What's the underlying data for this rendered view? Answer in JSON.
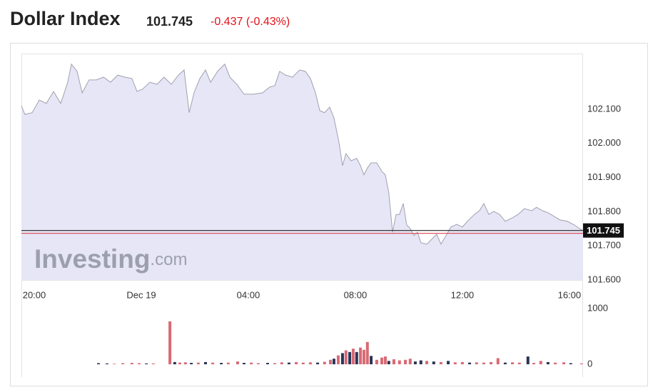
{
  "header": {
    "title": "Dollar Index",
    "change": "-0.437 (-0.43%)",
    "watermark": [
      "Investing",
      ".com"
    ]
  },
  "chart_data": [
    {
      "type": "area",
      "color": "#e6e6f6",
      "line_color": "#a0a0b0",
      "last_price": 101.745,
      "x": [
        -4.48,
        -4.35,
        -4.08,
        -3.81,
        -3.55,
        -3.28,
        -3.01,
        -2.75,
        -2.61,
        -2.4,
        -2.21,
        -1.95,
        -1.68,
        -1.41,
        -1.15,
        -0.88,
        -0.61,
        -0.35,
        -0.16,
        0.05,
        0.32,
        0.59,
        0.85,
        1.12,
        1.39,
        1.6,
        1.79,
        1.97,
        2.19,
        2.4,
        2.59,
        2.85,
        3.12,
        3.31,
        3.57,
        3.84,
        4.19,
        4.53,
        4.8,
        4.99,
        5.17,
        5.39,
        5.65,
        5.92,
        6.13,
        6.32,
        6.51,
        6.67,
        6.85,
        7.04,
        7.2,
        7.39,
        7.52,
        7.65,
        7.84,
        8.05,
        8.19,
        8.32,
        8.45,
        8.59,
        8.8,
        8.99,
        9.12,
        9.25,
        9.39,
        9.52,
        9.65,
        9.79,
        9.92,
        10.05,
        10.19,
        10.32,
        10.45,
        10.67,
        10.85,
        11.04,
        11.2,
        11.39,
        11.57,
        11.79,
        12.0,
        12.19,
        12.45,
        12.64,
        12.8,
        12.99,
        13.17,
        13.39,
        13.6,
        13.87,
        14.08,
        14.32,
        14.59,
        14.77,
        14.99,
        15.2,
        15.39,
        15.65,
        15.92,
        16.19,
        16.37,
        16.51
      ],
      "values": [
        102.11,
        102.085,
        102.09,
        102.127,
        102.117,
        102.152,
        102.117,
        102.179,
        102.232,
        102.211,
        102.148,
        102.186,
        102.186,
        102.194,
        102.179,
        102.2,
        102.194,
        102.19,
        102.152,
        102.159,
        102.179,
        102.173,
        102.194,
        102.173,
        102.2,
        102.215,
        102.09,
        102.148,
        102.19,
        102.215,
        102.179,
        102.211,
        102.232,
        102.194,
        102.173,
        102.144,
        102.144,
        102.148,
        102.165,
        102.169,
        102.211,
        102.2,
        102.194,
        102.215,
        102.211,
        102.19,
        102.148,
        102.096,
        102.09,
        102.106,
        102.075,
        102.002,
        101.935,
        101.97,
        101.949,
        101.956,
        101.935,
        101.908,
        101.928,
        101.943,
        101.943,
        101.918,
        101.908,
        101.855,
        101.74,
        101.792,
        101.792,
        101.824,
        101.761,
        101.751,
        101.73,
        101.74,
        101.709,
        101.705,
        101.719,
        101.734,
        101.705,
        101.73,
        101.755,
        101.763,
        101.755,
        101.772,
        101.792,
        101.803,
        101.824,
        101.792,
        101.801,
        101.792,
        101.772,
        101.782,
        101.792,
        101.809,
        101.803,
        101.813,
        101.803,
        101.797,
        101.788,
        101.776,
        101.772,
        101.761,
        101.751,
        101.745
      ],
      "xlim": [
        -4.48,
        16.51
      ],
      "xticks": [
        {
          "value": -4,
          "label": "20:00"
        },
        {
          "value": 0,
          "label": "Dec 19"
        },
        {
          "value": 4,
          "label": "04:00"
        },
        {
          "value": 8,
          "label": "08:00"
        },
        {
          "value": 12,
          "label": "12:00"
        },
        {
          "value": 16,
          "label": "16:00"
        }
      ],
      "ylim": [
        101.6,
        102.263
      ],
      "yticks": [
        {
          "value": 101.6,
          "label": "101.600"
        },
        {
          "value": 101.7,
          "label": "101.700"
        },
        {
          "value": 101.8,
          "label": "101.800"
        },
        {
          "value": 101.9,
          "label": "101.900"
        },
        {
          "value": 102.0,
          "label": "102.000"
        },
        {
          "value": 102.1,
          "label": "102.100"
        }
      ]
    },
    {
      "type": "bar",
      "x": [
        -1.6,
        -1.28,
        -1.01,
        -0.69,
        -0.35,
        -0.08,
        0.19,
        0.45,
        1.07,
        1.25,
        1.44,
        1.65,
        1.87,
        2.13,
        2.4,
        2.67,
        2.99,
        3.25,
        3.6,
        3.84,
        4.11,
        4.37,
        4.72,
        4.99,
        5.25,
        5.52,
        5.79,
        6.05,
        6.32,
        6.59,
        6.85,
        7.07,
        7.2,
        7.36,
        7.52,
        7.65,
        7.79,
        7.92,
        8.05,
        8.19,
        8.32,
        8.45,
        8.59,
        8.8,
        8.99,
        9.12,
        9.25,
        9.44,
        9.65,
        9.87,
        10.05,
        10.24,
        10.45,
        10.67,
        10.93,
        11.2,
        11.47,
        11.73,
        12.0,
        12.27,
        12.53,
        12.8,
        13.07,
        13.33,
        13.6,
        13.87,
        14.13,
        14.45,
        14.67,
        14.93,
        15.2,
        15.47,
        15.79,
        16.05,
        16.45
      ],
      "values": [
        20,
        15,
        10,
        20,
        25,
        20,
        15,
        15,
        770,
        40,
        30,
        35,
        25,
        30,
        40,
        30,
        25,
        30,
        50,
        25,
        30,
        20,
        25,
        20,
        35,
        30,
        40,
        30,
        35,
        30,
        45,
        80,
        100,
        160,
        200,
        250,
        220,
        280,
        220,
        300,
        260,
        400,
        150,
        80,
        120,
        140,
        60,
        90,
        70,
        80,
        100,
        50,
        70,
        60,
        50,
        40,
        60,
        35,
        40,
        30,
        35,
        30,
        40,
        110,
        30,
        35,
        30,
        140,
        25,
        60,
        40,
        30,
        35,
        20,
        15
      ],
      "colors": [
        "#2a3556",
        "#2a3556",
        "#d86a74",
        "#d86a74",
        "#d86a74",
        "#d86a74",
        "#2a3556",
        "#d86a74",
        "#d86a74",
        "#2a3556",
        "#d86a74",
        "#d86a74",
        "#2a3556",
        "#d86a74",
        "#2a3556",
        "#d86a74",
        "#2a3556",
        "#d86a74",
        "#d86a74",
        "#2a3556",
        "#d86a74",
        "#d86a74",
        "#2a3556",
        "#d86a74",
        "#d86a74",
        "#2a3556",
        "#d86a74",
        "#d86a74",
        "#d86a74",
        "#2a3556",
        "#d86a74",
        "#d86a74",
        "#2a3556",
        "#d86a74",
        "#2a3556",
        "#d86a74",
        "#2a3556",
        "#d86a74",
        "#2a3556",
        "#d86a74",
        "#d86a74",
        "#d86a74",
        "#2a3556",
        "#d86a74",
        "#d86a74",
        "#d86a74",
        "#2a3556",
        "#d86a74",
        "#d86a74",
        "#d86a74",
        "#d86a74",
        "#2a3556",
        "#2a3556",
        "#d86a74",
        "#2a3556",
        "#d86a74",
        "#2a3556",
        "#d86a74",
        "#d86a74",
        "#2a3556",
        "#d86a74",
        "#d86a74",
        "#d86a74",
        "#d86a74",
        "#2a3556",
        "#d86a74",
        "#d86a74",
        "#2a3556",
        "#d86a74",
        "#d86a74",
        "#2a3556",
        "#d86a74",
        "#d86a74",
        "#2a3556",
        "#d86a74"
      ],
      "xlim": [
        -4.48,
        16.51
      ],
      "ylim": [
        0,
        1090
      ],
      "yticks": [
        0,
        1000
      ]
    }
  ]
}
